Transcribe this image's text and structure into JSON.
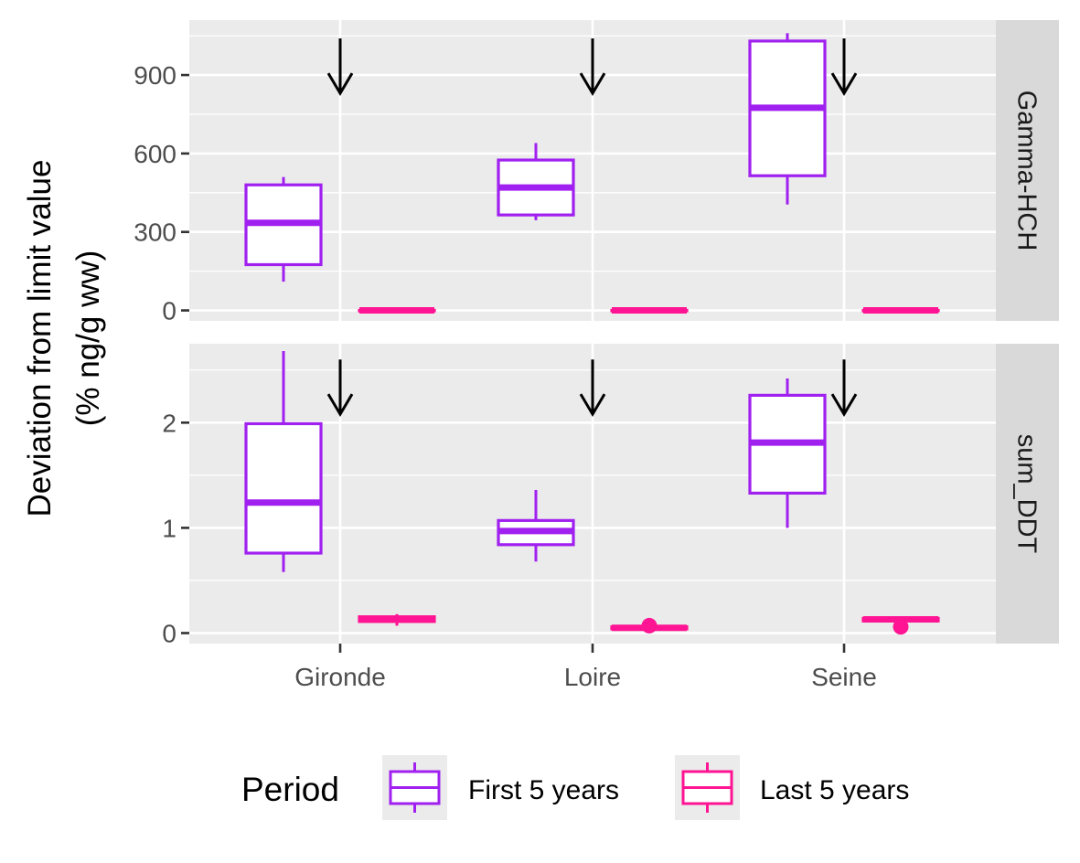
{
  "chart_data": {
    "type": "boxplot",
    "xlabel": "",
    "ylabel_line1": "Deviation from limit value",
    "ylabel_line2": "(% ng/g ww)",
    "categories": [
      "Gironde",
      "Loire",
      "Seine"
    ],
    "legend": {
      "title": "Period",
      "placement": "bottom",
      "items": [
        {
          "label": "First 5 years",
          "color": "#A020F0"
        },
        {
          "label": "Last 5 years",
          "color": "#FF1493"
        }
      ]
    },
    "grid": true,
    "panels": [
      {
        "label": "Gamma-HCH",
        "ylim": [
          -40,
          1110
        ],
        "yticks": [
          0,
          300,
          600,
          900
        ],
        "arrow_y": {
          "top": 1040,
          "bottom": 830
        },
        "series": [
          {
            "name": "First 5 years",
            "boxes": [
              {
                "category": "Gironde",
                "min": 110,
                "q1": 175,
                "median": 335,
                "q3": 480,
                "max": 510,
                "outliers": []
              },
              {
                "category": "Loire",
                "min": 345,
                "q1": 365,
                "median": 470,
                "q3": 575,
                "max": 640,
                "outliers": []
              },
              {
                "category": "Seine",
                "min": 405,
                "q1": 515,
                "median": 775,
                "q3": 1030,
                "max": 1060,
                "outliers": []
              }
            ]
          },
          {
            "name": "Last 5 years",
            "boxes": [
              {
                "category": "Gironde",
                "min": 0,
                "q1": 0,
                "median": 0,
                "q3": 0,
                "max": 0,
                "outliers": []
              },
              {
                "category": "Loire",
                "min": 0,
                "q1": 0,
                "median": 0,
                "q3": 0,
                "max": 0,
                "outliers": []
              },
              {
                "category": "Seine",
                "min": 0,
                "q1": 0,
                "median": 0,
                "q3": 0,
                "max": 0,
                "outliers": []
              }
            ]
          }
        ]
      },
      {
        "label": "sum_DDT",
        "ylim": [
          -0.1,
          2.75
        ],
        "yticks": [
          0,
          1,
          2
        ],
        "arrow_y": {
          "top": 2.6,
          "bottom": 2.08
        },
        "series": [
          {
            "name": "First 5 years",
            "boxes": [
              {
                "category": "Gironde",
                "min": 0.58,
                "q1": 0.76,
                "median": 1.24,
                "q3": 1.99,
                "max": 2.68,
                "outliers": []
              },
              {
                "category": "Loire",
                "min": 0.68,
                "q1": 0.84,
                "median": 0.97,
                "q3": 1.07,
                "max": 1.36,
                "outliers": []
              },
              {
                "category": "Seine",
                "min": 1.0,
                "q1": 1.33,
                "median": 1.81,
                "q3": 2.26,
                "max": 2.42,
                "outliers": []
              }
            ]
          },
          {
            "name": "Last 5 years",
            "boxes": [
              {
                "category": "Gironde",
                "min": 0.07,
                "q1": 0.11,
                "median": 0.135,
                "q3": 0.155,
                "max": 0.18,
                "outliers": []
              },
              {
                "category": "Loire",
                "min": 0.035,
                "q1": 0.04,
                "median": 0.05,
                "q3": 0.06,
                "max": 0.07,
                "outliers": [
                  0.07
                ]
              },
              {
                "category": "Seine",
                "min": 0.11,
                "q1": 0.115,
                "median": 0.13,
                "q3": 0.14,
                "max": 0.145,
                "outliers": [
                  0.06
                ]
              }
            ]
          }
        ]
      }
    ]
  },
  "colors": {
    "first": "#A020F0",
    "last": "#FF1493",
    "panel_bg": "#EBEBEB",
    "strip_bg": "#D9D9D9",
    "grid": "#FFFFFF"
  }
}
